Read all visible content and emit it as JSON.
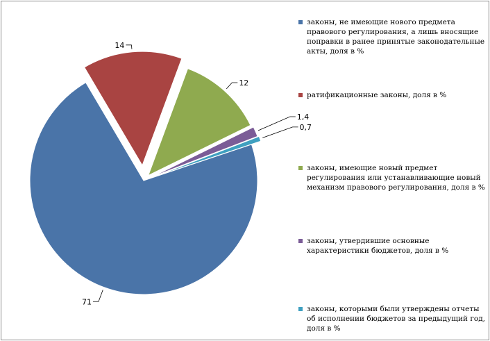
{
  "chart_data": {
    "type": "pie",
    "slices": [
      {
        "label": "законы, не имеющие нового предмета правового регулирования, а лишь вносящие поправки в ранее принятые законодательные акты, доля в %",
        "value": 71,
        "value_label": "71",
        "color": "#4A74A8"
      },
      {
        "label": "ратификационные законы, доля в %",
        "value": 14,
        "value_label": "14",
        "color": "#A94442"
      },
      {
        "label": "законы, имеющие новый предмет регулирования или устанавливающие новый механизм правового регулирования, доля в %",
        "value": 12,
        "value_label": "12",
        "color": "#8FAA4F"
      },
      {
        "label": "законы, утвердившие основные характеристики бюджетов, доля в %",
        "value": 1.4,
        "value_label": "1,4",
        "color": "#7B5C97"
      },
      {
        "label": "законы, которыми были утверждены отчеты об исполнении бюджетов за предыдущий год, доля в %",
        "value": 0.7,
        "value_label": "0,7",
        "color": "#3FA0C0"
      }
    ],
    "legend_position": "right",
    "exploded": true
  }
}
